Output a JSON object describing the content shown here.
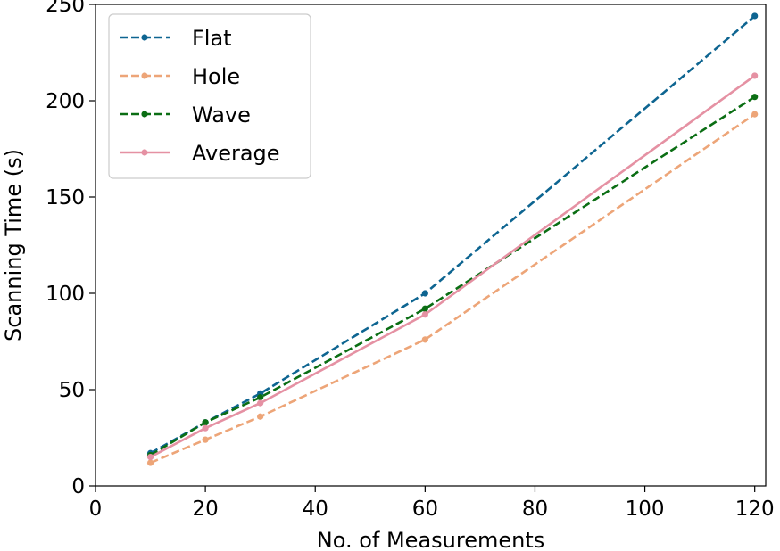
{
  "chart_data": {
    "type": "line",
    "title": "",
    "xlabel": "No. of Measurements",
    "ylabel": "Scanning Time (s)",
    "xlim": [
      0,
      122
    ],
    "ylim": [
      0,
      250
    ],
    "xticks": [
      0,
      20,
      40,
      60,
      80,
      100,
      120
    ],
    "yticks": [
      0,
      50,
      100,
      150,
      200,
      250
    ],
    "grid": false,
    "legend_position": "top-left",
    "x": [
      10,
      20,
      30,
      60,
      120
    ],
    "series": [
      {
        "name": "Flat",
        "values": [
          17,
          33,
          48,
          100,
          244
        ],
        "color": "#0e6591",
        "style": "dashed"
      },
      {
        "name": "Hole",
        "values": [
          12,
          24,
          36,
          76,
          193
        ],
        "color": "#eda578",
        "style": "dashed"
      },
      {
        "name": "Wave",
        "values": [
          16,
          33,
          46,
          92,
          202
        ],
        "color": "#0b6e14",
        "style": "dashed"
      },
      {
        "name": "Average",
        "values": [
          15,
          30,
          43,
          89,
          213
        ],
        "color": "#e591a3",
        "style": "solid"
      }
    ]
  }
}
